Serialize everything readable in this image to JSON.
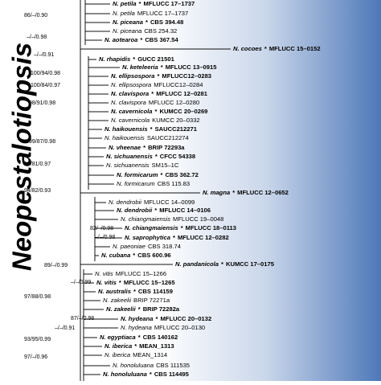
{
  "clade": "Neopestalotiopsis",
  "taxa": [
    {
      "name": "N. petila",
      "marker": "*",
      "strain": "MFLUCC 17–1737"
    },
    {
      "name": "N. petila",
      "strain": "MFLUCC 17–1737"
    },
    {
      "name": "N. piceana",
      "marker": "*",
      "strain": "CBS 394.48"
    },
    {
      "name": "N. piceana",
      "strain": "CBS 254.32"
    },
    {
      "name": "N. aotearoa",
      "marker": "*",
      "strain": "CBS 367.54"
    },
    {
      "name": "N. cocoes",
      "marker": "*",
      "strain": "MFLUCC 15–0152"
    },
    {
      "name": "N. rhapidis",
      "marker": "*",
      "strain": "GUCC 21501"
    },
    {
      "name": "N. keteleeria",
      "marker": "*",
      "strain": "MFLUCC 13–0915"
    },
    {
      "name": "N. ellipsospora",
      "marker": "*",
      "strain": "MFLUCC12–0283"
    },
    {
      "name": "N. ellipsospora",
      "strain": "MFLUCC12–0284"
    },
    {
      "name": "N. clavispora",
      "marker": "*",
      "strain": "MFLUCC 12–0281"
    },
    {
      "name": "N. clavispora",
      "strain": "MFLUCC 12–0280"
    },
    {
      "name": "N. cavernicola",
      "marker": "*",
      "strain": "KUMCC 20–0269"
    },
    {
      "name": "N. cavernicola",
      "strain": "KUMCC 20–0332"
    },
    {
      "name": "N. haikouensis",
      "marker": "*",
      "strain": "SAUCC212271"
    },
    {
      "name": "N. haikouensis",
      "strain": "SAUCC212274"
    },
    {
      "name": "N. vheenae",
      "marker": "*",
      "strain": "BRIP 72293a"
    },
    {
      "name": "N. sichuanensis",
      "marker": "*",
      "strain": "CFCC 54338"
    },
    {
      "name": "N. sichuanensis",
      "strain": "SM15–1C"
    },
    {
      "name": "N. formicarum",
      "marker": "*",
      "strain": "CBS 362.72"
    },
    {
      "name": "N. formicarum",
      "strain": "CBS 115.83"
    },
    {
      "name": "N. magna",
      "marker": "*",
      "strain": "MFLUCC 12–0652"
    },
    {
      "name": "N. dendrobii",
      "strain": "MFLUCC 14–0099"
    },
    {
      "name": "N. dendrobii",
      "marker": "*",
      "strain": "MFLUCC 14–0106"
    },
    {
      "name": "N. chiangmaiensis",
      "strain": "MFLUCC 19–0048"
    },
    {
      "name": "N. chiangmaiensis",
      "marker": "*",
      "strain": "MFLUCC 18–0113"
    },
    {
      "name": "N. saprophytica",
      "marker": "*",
      "strain": "MFLUCC 12–0282"
    },
    {
      "name": "N. paeoniae",
      "strain": "CBS 318.74"
    },
    {
      "name": "N. cubana",
      "marker": "*",
      "strain": "CBS 600.96"
    },
    {
      "name": "N. pandanicola",
      "marker": "*",
      "strain": "KUMCC 17–0175"
    },
    {
      "name": "N. vitis",
      "strain": "MFLUCC 15–1266"
    },
    {
      "name": "N. vitis",
      "marker": "*",
      "strain": "MFLUCC 15–1265"
    },
    {
      "name": "N. australis",
      "marker": "*",
      "strain": "CBS 114159"
    },
    {
      "name": "N. zakeelii",
      "strain": "BRIP 72271a"
    },
    {
      "name": "N. zakeelii",
      "marker": "*",
      "strain": "BRIP 72282a"
    },
    {
      "name": "N. hydeana",
      "marker": "*",
      "strain": "MFLUCC 20–0132"
    },
    {
      "name": "N. hydeana",
      "strain": "MFLUCC 20–0130"
    },
    {
      "name": "N. egyptiaca",
      "marker": "*",
      "strain": "CBS 140162"
    },
    {
      "name": "N. iberica",
      "marker": "*",
      "strain": "MEAN_1313"
    },
    {
      "name": "N. iberica",
      "strain": "MEAN_1314"
    },
    {
      "name": "N. honoluluana",
      "strain": "CBS 111535"
    },
    {
      "name": "N. honoluluana",
      "marker": "*",
      "strain": "CBS 114495"
    }
  ],
  "supports": [
    "86/–/0.90",
    "–/–/0.98",
    "–/–/0.91",
    "100/94/0.98",
    "100/84/0.97",
    "98/91/0.98",
    "99/87/0.98",
    "85/81/0.97",
    "94/82/0.93",
    "82/–/0.98",
    "–/–/0.98",
    "89/–/0.99",
    "–/–/0.99",
    "97/88/0.98",
    "87/–/0.98",
    "–/–/0.91",
    "93/95/0.99",
    "97/–/0.96"
  ]
}
